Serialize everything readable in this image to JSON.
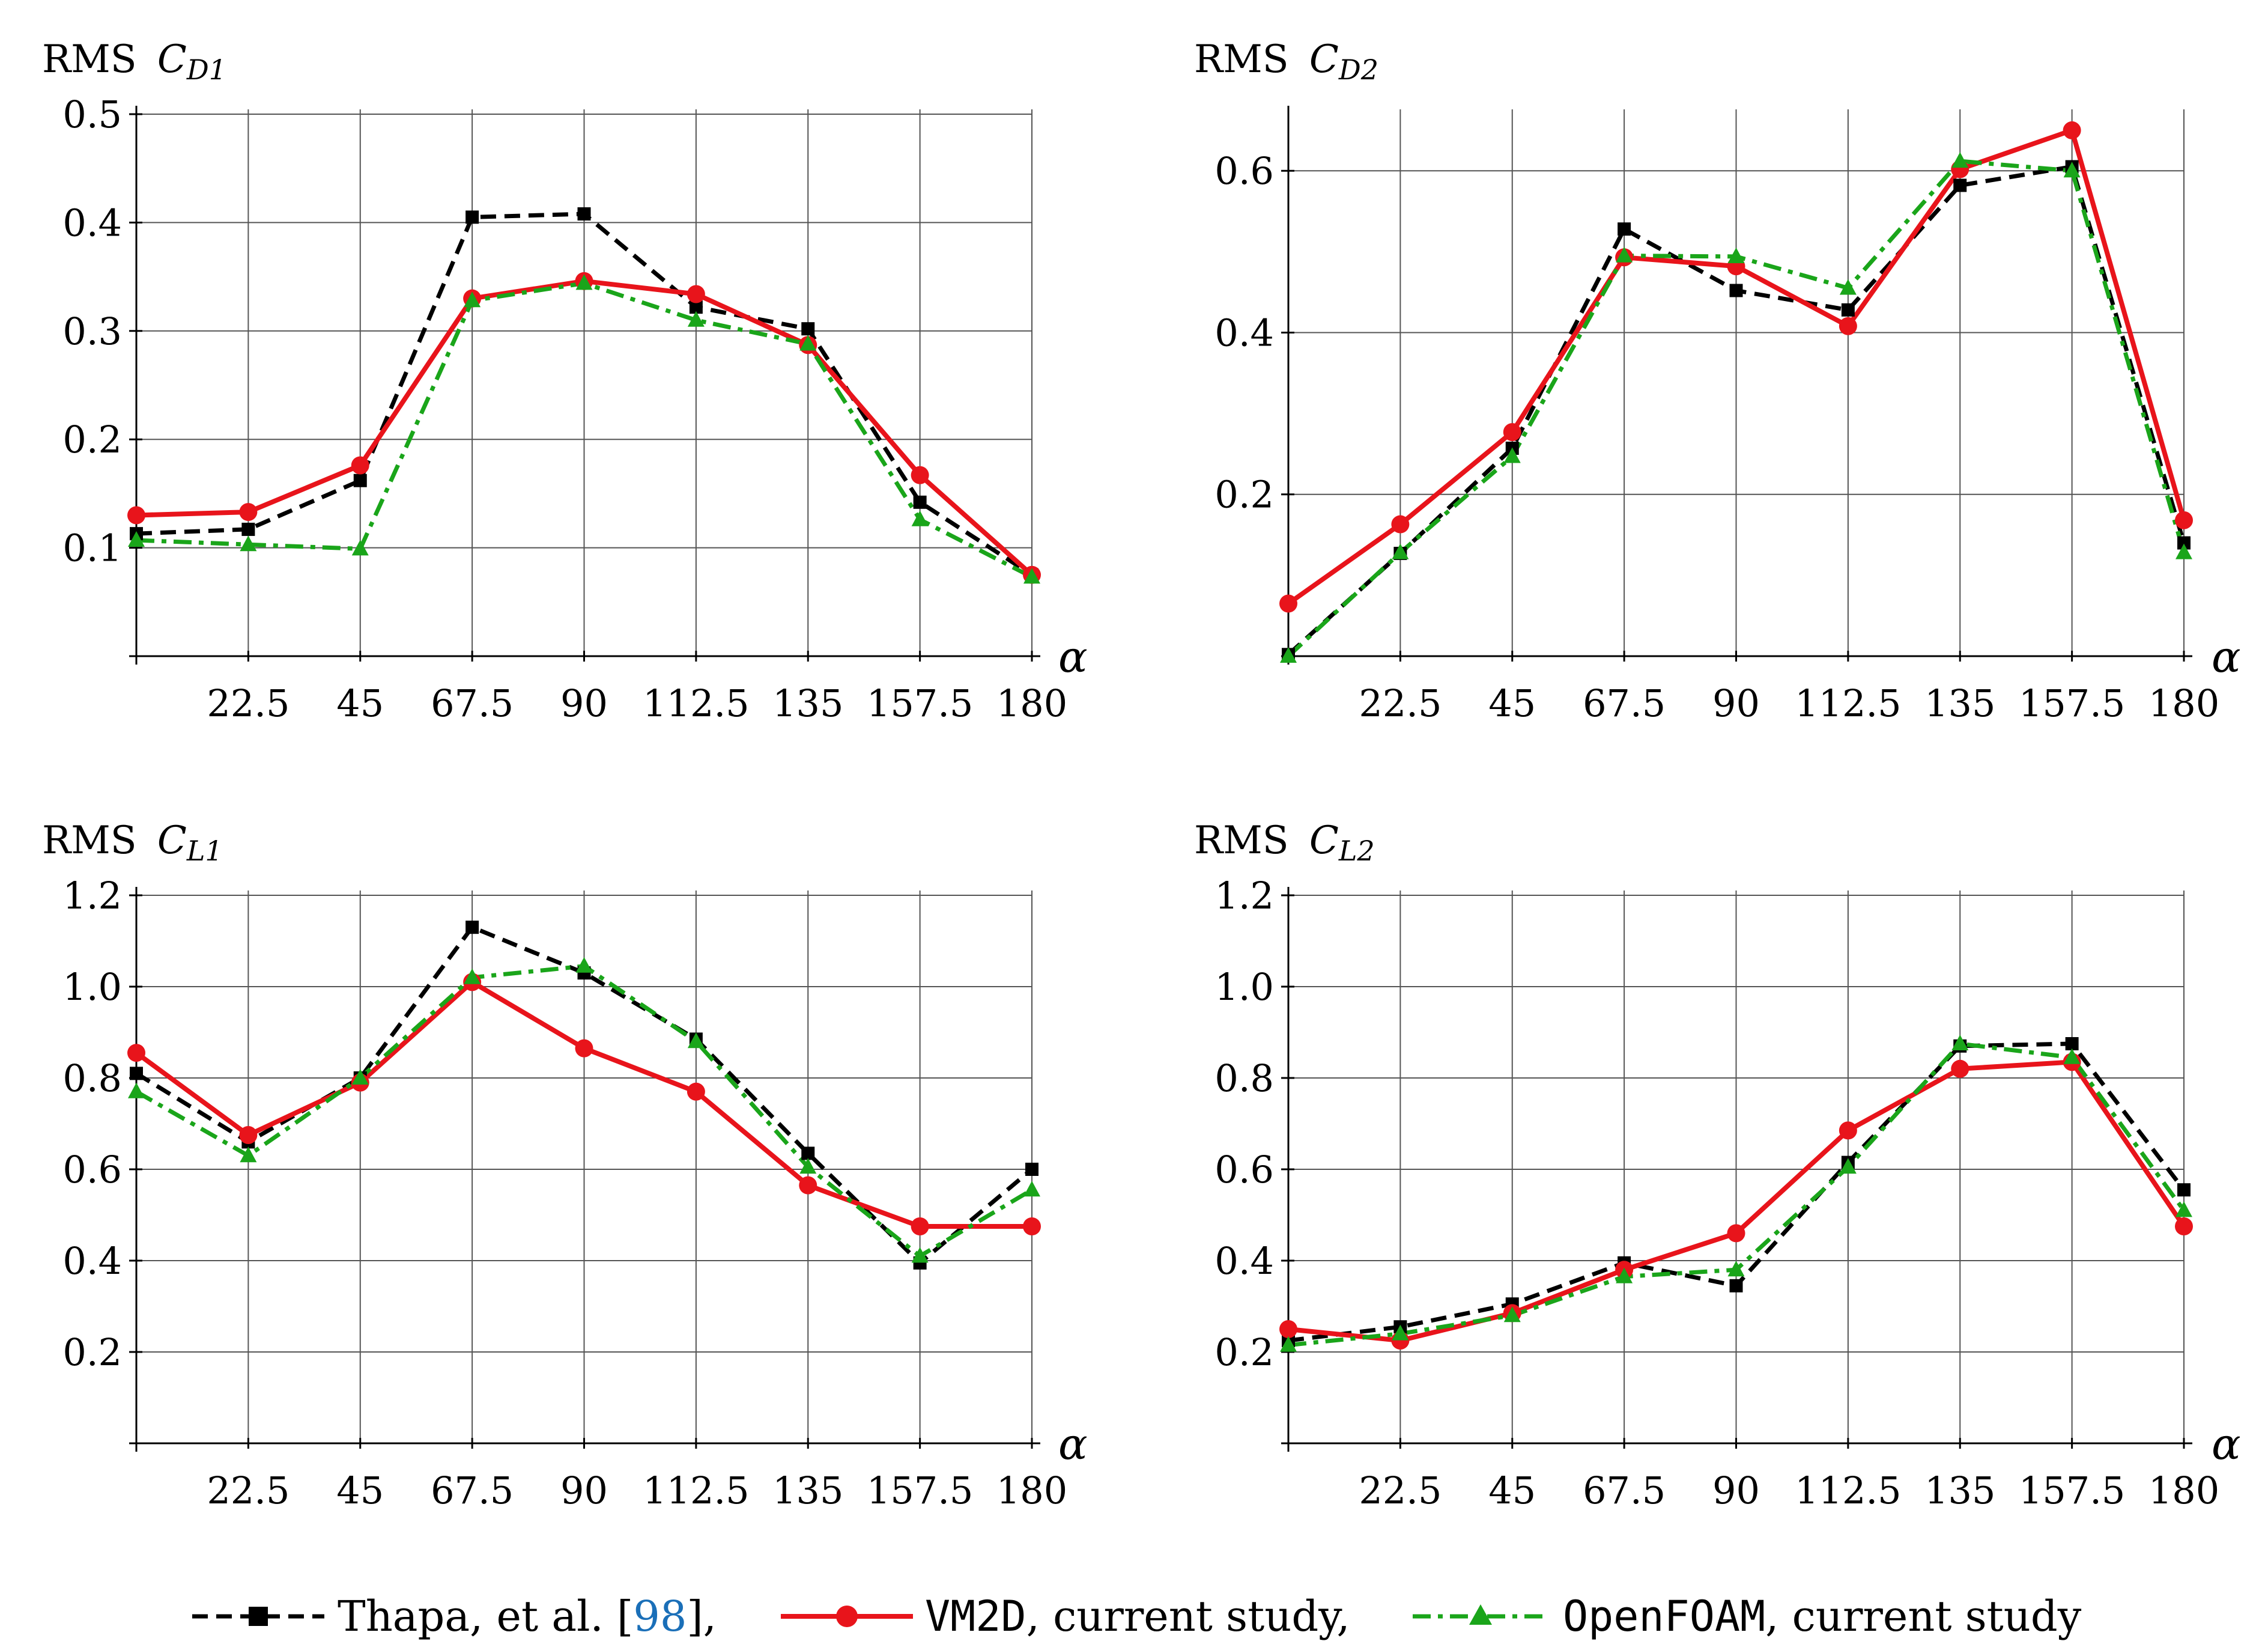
{
  "legend": {
    "thapa": {
      "label": "Thapa, et al. [",
      "ref": "98",
      "suffix": "],",
      "color": "#000000"
    },
    "vm2d": {
      "code": "VM2D",
      "label": ", current study,",
      "color": "#e8141b"
    },
    "openfoam": {
      "code": "OpenFOAM",
      "label": ", current study",
      "color": "#1aa51a"
    }
  },
  "chart_data": [
    {
      "type": "line",
      "title_prefix": "RMS",
      "title_symbol": "C",
      "title_subscript": "D1",
      "xlabel": "α",
      "x": [
        0,
        22.5,
        45,
        67.5,
        90,
        112.5,
        135,
        157.5,
        180
      ],
      "x_tick_labels": [
        "22.5",
        "45",
        "67.5",
        "90",
        "112.5",
        "135",
        "157.5",
        "180"
      ],
      "ylim": [
        0,
        0.5
      ],
      "y_ticks": [
        0.1,
        0.2,
        0.3,
        0.4,
        0.5
      ],
      "y_tick_labels": [
        "0.1",
        "0.2",
        "0.3",
        "0.4",
        "0.5"
      ],
      "grid": true,
      "series": [
        {
          "name": "Thapa, et al. [98]",
          "values": [
            0.113,
            0.117,
            0.162,
            0.405,
            0.408,
            0.322,
            0.302,
            0.142,
            0.075
          ]
        },
        {
          "name": "VM2D, current study",
          "values": [
            0.13,
            0.133,
            0.176,
            0.33,
            0.346,
            0.334,
            0.287,
            0.167,
            0.075
          ]
        },
        {
          "name": "OpenFOAM, current study",
          "values": [
            0.107,
            0.103,
            0.099,
            0.328,
            0.344,
            0.31,
            0.288,
            0.126,
            0.073
          ]
        }
      ]
    },
    {
      "type": "line",
      "title_prefix": "RMS",
      "title_symbol": "C",
      "title_subscript": "D2",
      "xlabel": "α",
      "x": [
        0,
        22.5,
        45,
        67.5,
        90,
        112.5,
        135,
        157.5,
        180
      ],
      "x_tick_labels": [
        "22.5",
        "45",
        "67.5",
        "90",
        "112.5",
        "135",
        "157.5",
        "180"
      ],
      "ylim": [
        0,
        0.67
      ],
      "y_ticks": [
        0.2,
        0.4,
        0.6
      ],
      "y_tick_labels": [
        "0.2",
        "0.4",
        "0.6"
      ],
      "grid": true,
      "series": [
        {
          "name": "Thapa, et al. [98]",
          "values": [
            0.002,
            0.127,
            0.257,
            0.528,
            0.452,
            0.428,
            0.582,
            0.605,
            0.14
          ]
        },
        {
          "name": "VM2D, current study",
          "values": [
            0.065,
            0.163,
            0.277,
            0.493,
            0.482,
            0.408,
            0.602,
            0.65,
            0.168
          ]
        },
        {
          "name": "OpenFOAM, current study",
          "values": [
            0.0,
            0.128,
            0.247,
            0.495,
            0.494,
            0.455,
            0.612,
            0.6,
            0.128
          ]
        }
      ]
    },
    {
      "type": "line",
      "title_prefix": "RMS",
      "title_symbol": "C",
      "title_subscript": "L1",
      "xlabel": "α",
      "x": [
        0,
        22.5,
        45,
        67.5,
        90,
        112.5,
        135,
        157.5,
        180
      ],
      "x_tick_labels": [
        "22.5",
        "45",
        "67.5",
        "90",
        "112.5",
        "135",
        "157.5",
        "180"
      ],
      "ylim": [
        0,
        1.2
      ],
      "y_ticks": [
        0.2,
        0.4,
        0.6,
        0.8,
        1.0,
        1.2
      ],
      "y_tick_labels": [
        "0.2",
        "0.4",
        "0.6",
        "0.8",
        "1.0",
        "1.2"
      ],
      "grid": true,
      "series": [
        {
          "name": "Thapa, et al. [98]",
          "values": [
            0.81,
            0.66,
            0.8,
            1.13,
            1.03,
            0.885,
            0.635,
            0.395,
            0.6
          ]
        },
        {
          "name": "VM2D, current study",
          "values": [
            0.855,
            0.675,
            0.79,
            1.01,
            0.865,
            0.77,
            0.565,
            0.475,
            0.475
          ]
        },
        {
          "name": "OpenFOAM, current study",
          "values": [
            0.77,
            0.63,
            0.8,
            1.02,
            1.045,
            0.88,
            0.605,
            0.41,
            0.555
          ]
        }
      ]
    },
    {
      "type": "line",
      "title_prefix": "RMS",
      "title_symbol": "C",
      "title_subscript": "L2",
      "xlabel": "α",
      "x": [
        0,
        22.5,
        45,
        67.5,
        90,
        112.5,
        135,
        157.5,
        180
      ],
      "x_tick_labels": [
        "22.5",
        "45",
        "67.5",
        "90",
        "112.5",
        "135",
        "157.5",
        "180"
      ],
      "ylim": [
        0,
        1.2
      ],
      "y_ticks": [
        0.2,
        0.4,
        0.6,
        0.8,
        1.0,
        1.2
      ],
      "y_tick_labels": [
        "0.2",
        "0.4",
        "0.6",
        "0.8",
        "1.0",
        "1.2"
      ],
      "grid": true,
      "series": [
        {
          "name": "Thapa, et al. [98]",
          "values": [
            0.225,
            0.255,
            0.305,
            0.395,
            0.345,
            0.615,
            0.87,
            0.875,
            0.555
          ]
        },
        {
          "name": "VM2D, current study",
          "values": [
            0.25,
            0.225,
            0.285,
            0.38,
            0.46,
            0.685,
            0.82,
            0.835,
            0.475
          ]
        },
        {
          "name": "OpenFOAM, current study",
          "values": [
            0.215,
            0.24,
            0.28,
            0.365,
            0.38,
            0.605,
            0.875,
            0.845,
            0.51
          ]
        }
      ]
    }
  ]
}
